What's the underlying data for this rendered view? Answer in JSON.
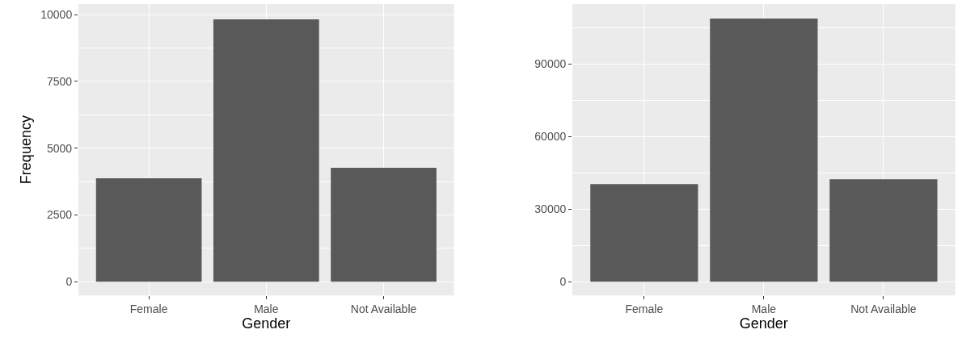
{
  "chart_data": [
    {
      "type": "bar",
      "xlabel": "Gender",
      "ylabel": "Frequency",
      "categories": [
        "Female",
        "Male",
        "Not Available"
      ],
      "values": [
        3870,
        9820,
        4260
      ],
      "color": "#595959",
      "ylim": [
        -514,
        10393
      ],
      "yticks": [
        0,
        2500,
        5000,
        7500,
        10000
      ],
      "grid": true
    },
    {
      "type": "bar",
      "xlabel": "Gender",
      "categories": [
        "Female",
        "Male",
        "Not Available"
      ],
      "values": [
        40300,
        108700,
        42300
      ],
      "color": "#595959",
      "ylim": [
        -5667,
        114667
      ],
      "yticks": [
        0,
        30000,
        60000,
        90000
      ],
      "grid": true
    }
  ]
}
